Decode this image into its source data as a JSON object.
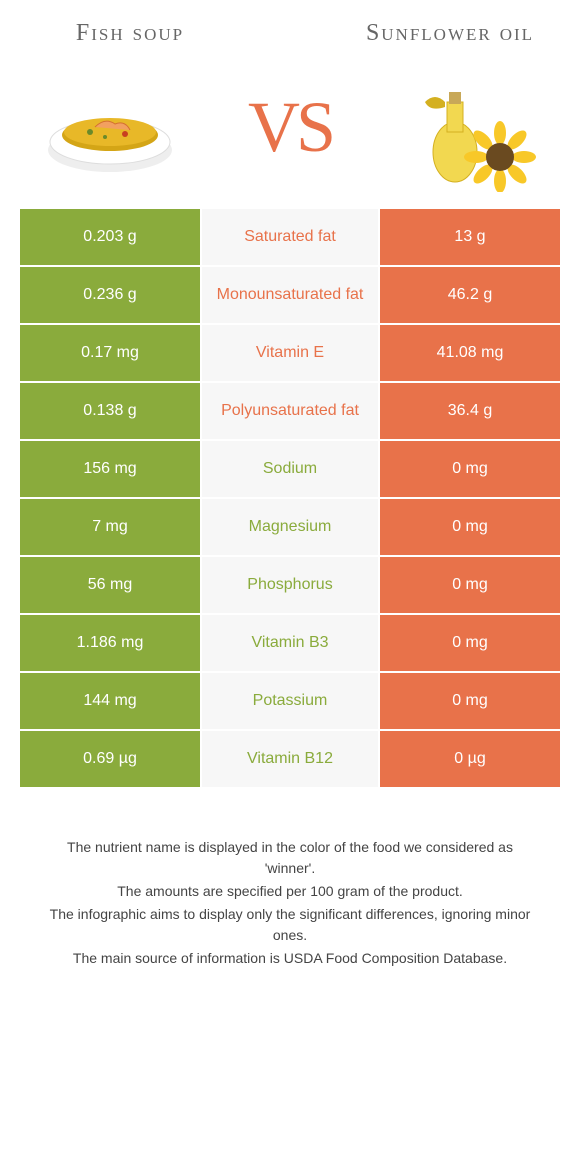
{
  "colors": {
    "green": "#8aab3c",
    "orange": "#e8724a",
    "background": "#ffffff",
    "mid_bg": "#f7f7f7",
    "title_text": "#666666",
    "footer_text": "#444444"
  },
  "header": {
    "left_title": "Fish soup",
    "right_title": "Sunflower oil",
    "vs_label": "VS"
  },
  "typography": {
    "title_fontsize": 24,
    "vs_fontsize": 72,
    "cell_fontsize": 16,
    "footer_fontsize": 14
  },
  "table": {
    "rows": [
      {
        "left": "0.203 g",
        "mid": "Saturated fat",
        "right": "13 g",
        "winner": "right"
      },
      {
        "left": "0.236 g",
        "mid": "Monounsaturated fat",
        "right": "46.2 g",
        "winner": "right"
      },
      {
        "left": "0.17 mg",
        "mid": "Vitamin E",
        "right": "41.08 mg",
        "winner": "right"
      },
      {
        "left": "0.138 g",
        "mid": "Polyunsaturated fat",
        "right": "36.4 g",
        "winner": "right"
      },
      {
        "left": "156 mg",
        "mid": "Sodium",
        "right": "0 mg",
        "winner": "left"
      },
      {
        "left": "7 mg",
        "mid": "Magnesium",
        "right": "0 mg",
        "winner": "left"
      },
      {
        "left": "56 mg",
        "mid": "Phosphorus",
        "right": "0 mg",
        "winner": "left"
      },
      {
        "left": "1.186 mg",
        "mid": "Vitamin B3",
        "right": "0 mg",
        "winner": "left"
      },
      {
        "left": "144 mg",
        "mid": "Potassium",
        "right": "0 mg",
        "winner": "left"
      },
      {
        "left": "0.69 µg",
        "mid": "Vitamin B12",
        "right": "0 µg",
        "winner": "left"
      }
    ]
  },
  "footer": {
    "line1": "The nutrient name is displayed in the color of the food we considered as 'winner'.",
    "line2": "The amounts are specified per 100 gram of the product.",
    "line3": "The infographic aims to display only the significant differences, ignoring minor ones.",
    "line4": "The main source of information is USDA Food Composition Database."
  }
}
